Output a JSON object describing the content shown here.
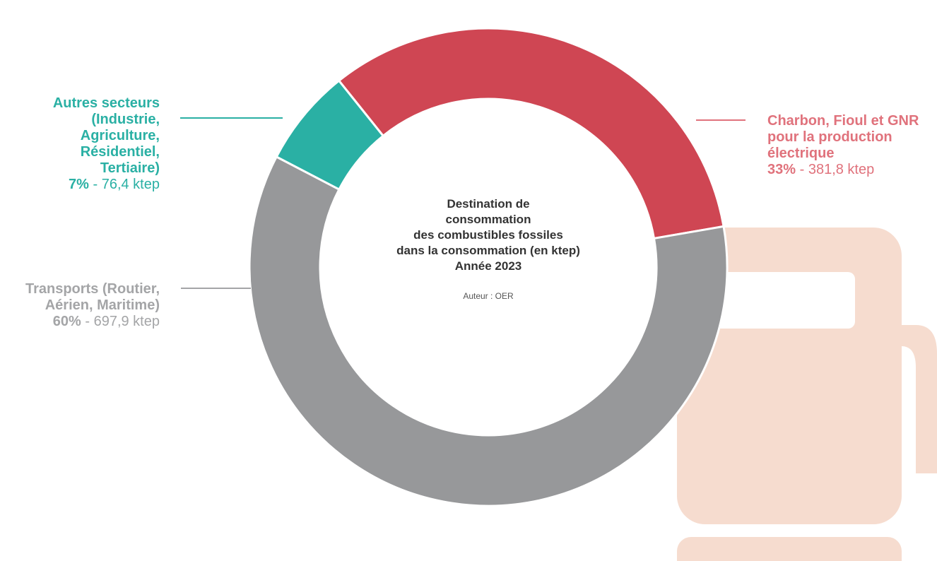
{
  "chart_data": {
    "type": "donut",
    "title": "Destination de\nconsommation\ndes combustibles fossiles\ndans la consommation (en ktep)\nAnnée 2023",
    "subtitle": "Auteur : OER",
    "categories": [
      "Charbon, Fioul et GNR\npour la production\nélectrique",
      "Transports (Routier,\nAérien, Maritime)",
      "Autres secteurs\n(Industrie,\nAgriculture,\nRésidentiel,\nTertiaire)"
    ],
    "values": [
      381.8,
      697.9,
      76.4
    ],
    "value_labels": [
      "381,8 ktep",
      "697,9 ktep",
      "76,4 ktep"
    ],
    "percents": [
      33,
      60,
      7
    ],
    "percent_labels": [
      "33%",
      "60%",
      "7%"
    ],
    "label_separator": "-",
    "colors": [
      "#cf4653",
      "#97989a",
      "#2ab0a4"
    ],
    "label_colors": [
      "#e0727c",
      "#a4a5a7",
      "#2ab0a4"
    ]
  }
}
